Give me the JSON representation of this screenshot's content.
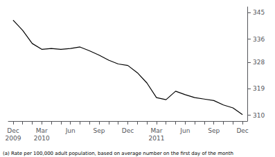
{
  "chart_data": {
    "type": "line",
    "categories": [
      "Dec\n2009",
      null,
      null,
      "Mar\n2010",
      null,
      null,
      "Jun",
      null,
      null,
      "Sep",
      null,
      null,
      "Dec",
      null,
      null,
      "Mar\n2011",
      null,
      null,
      "Jun",
      null,
      null,
      "Sep",
      null,
      null,
      "Dec"
    ],
    "values": [
      342.5,
      339.0,
      334.5,
      332.5,
      332.8,
      332.5,
      332.8,
      333.3,
      332.0,
      330.5,
      328.8,
      327.5,
      327.0,
      324.5,
      321.0,
      316.0,
      315.3,
      318.2,
      317.0,
      316.0,
      315.5,
      315.0,
      313.5,
      312.5,
      310.2
    ],
    "color": "#000000",
    "ylim": [
      308.0,
      347.0
    ],
    "yticks": [
      310,
      319,
      328,
      336,
      345
    ],
    "grid": false,
    "annotations": [
      "(a) Rate per 100,000 adult population, based on average number on the first day of the month"
    ]
  }
}
